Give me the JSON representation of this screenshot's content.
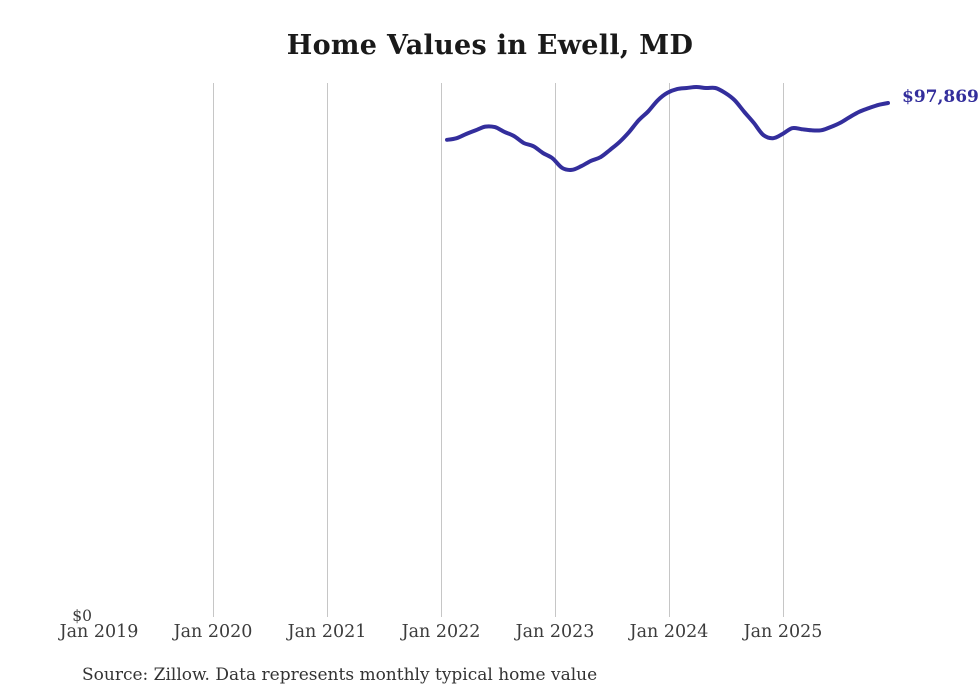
{
  "page": {
    "background_color": "#ffffff"
  },
  "chart": {
    "title": "Home Values in Ewell, MD",
    "source_note": "Source: Zillow. Data represents monthly typical home value",
    "end_label": "$97,869",
    "y_zero_label": "$0",
    "line_color": "#332e9c",
    "gridline_color": "#c6c6c6",
    "title_color": "#1a1a1a",
    "axis_label_color": "#3c3c3c",
    "source_color": "#333333"
  },
  "chart_data": {
    "type": "line",
    "title": "Home Values in Ewell, MD",
    "series_name": "Monthly typical home value",
    "x_tick_labels": [
      "Jan 2019",
      "Jan 2020",
      "Jan 2021",
      "Jan 2022",
      "Jan 2023",
      "Jan 2024",
      "Jan 2025"
    ],
    "y_tick_labels": [
      "$0"
    ],
    "ylim": [
      0,
      101600
    ],
    "x_range": [
      "Jan 2019",
      "Dec 2025"
    ],
    "grid": "vertical-only",
    "legend_position": "none",
    "annotation_final_value": 97869,
    "x": [
      "2022-01",
      "2022-02",
      "2022-03",
      "2022-04",
      "2022-05",
      "2022-06",
      "2022-07",
      "2022-08",
      "2022-09",
      "2022-10",
      "2022-11",
      "2022-12",
      "2023-01",
      "2023-02",
      "2023-03",
      "2023-04",
      "2023-05",
      "2023-06",
      "2023-07",
      "2023-08",
      "2023-09",
      "2023-10",
      "2023-11",
      "2023-12",
      "2024-01",
      "2024-02",
      "2024-03",
      "2024-04",
      "2024-05",
      "2024-06",
      "2024-07",
      "2024-08",
      "2024-09",
      "2024-10",
      "2024-11",
      "2024-12",
      "2025-01",
      "2025-02",
      "2025-03",
      "2025-04",
      "2025-05",
      "2025-06",
      "2025-07",
      "2025-08",
      "2025-09",
      "2025-10",
      "2025-11"
    ],
    "values": [
      90900,
      91200,
      92000,
      92700,
      93400,
      93300,
      92400,
      91600,
      90300,
      89700,
      88400,
      87400,
      85600,
      85200,
      85900,
      86900,
      87600,
      89000,
      90500,
      92400,
      94600,
      96300,
      98400,
      99800,
      100500,
      100700,
      100900,
      100700,
      100700,
      99800,
      98400,
      96200,
      94100,
      91800,
      91200,
      92000,
      93100,
      92900,
      92700,
      92700,
      93300,
      94100,
      95200,
      96200,
      96900,
      97500,
      97869
    ]
  }
}
